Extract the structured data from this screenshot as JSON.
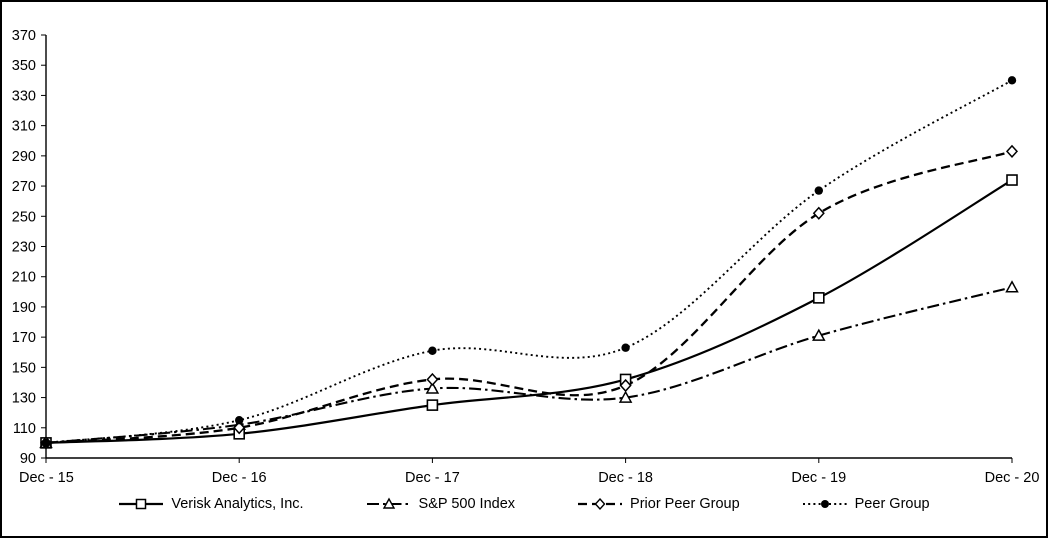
{
  "chart_data": {
    "type": "line",
    "title": "",
    "xlabel": "",
    "ylabel": "",
    "categories": [
      "Dec - 15",
      "Dec - 16",
      "Dec - 17",
      "Dec - 18",
      "Dec - 19",
      "Dec - 20"
    ],
    "series": [
      {
        "name": "Verisk Analytics, Inc.",
        "values": [
          100,
          106,
          125,
          142,
          196,
          274
        ],
        "line_style": "solid",
        "marker": "open-square",
        "color": "#000000"
      },
      {
        "name": "S&P 500 Index",
        "values": [
          100,
          112,
          136,
          130,
          171,
          203
        ],
        "line_style": "dash-dot",
        "marker": "open-triangle",
        "color": "#000000"
      },
      {
        "name": "Prior Peer Group",
        "values": [
          100,
          110,
          142,
          138,
          252,
          293
        ],
        "line_style": "dashed",
        "marker": "open-diamond",
        "color": "#000000"
      },
      {
        "name": "Peer Group",
        "values": [
          100,
          115,
          161,
          163,
          267,
          340
        ],
        "line_style": "dotted",
        "marker": "filled-circle",
        "color": "#000000"
      }
    ],
    "ylim": [
      90,
      370
    ],
    "y_tick_step": 20,
    "y_tick_labels": [
      "370",
      "350",
      "330",
      "310",
      "290",
      "270",
      "250",
      "230",
      "210",
      "190",
      "170",
      "150",
      "130",
      "110",
      "90"
    ],
    "x_tick_labels": [
      "Dec - 15",
      "Dec - 16",
      "Dec - 17",
      "Dec - 18",
      "Dec - 19",
      "Dec - 20"
    ],
    "grid": false,
    "legend_position": "bottom",
    "background_color": "#ffffff",
    "axis_color": "#000000"
  }
}
